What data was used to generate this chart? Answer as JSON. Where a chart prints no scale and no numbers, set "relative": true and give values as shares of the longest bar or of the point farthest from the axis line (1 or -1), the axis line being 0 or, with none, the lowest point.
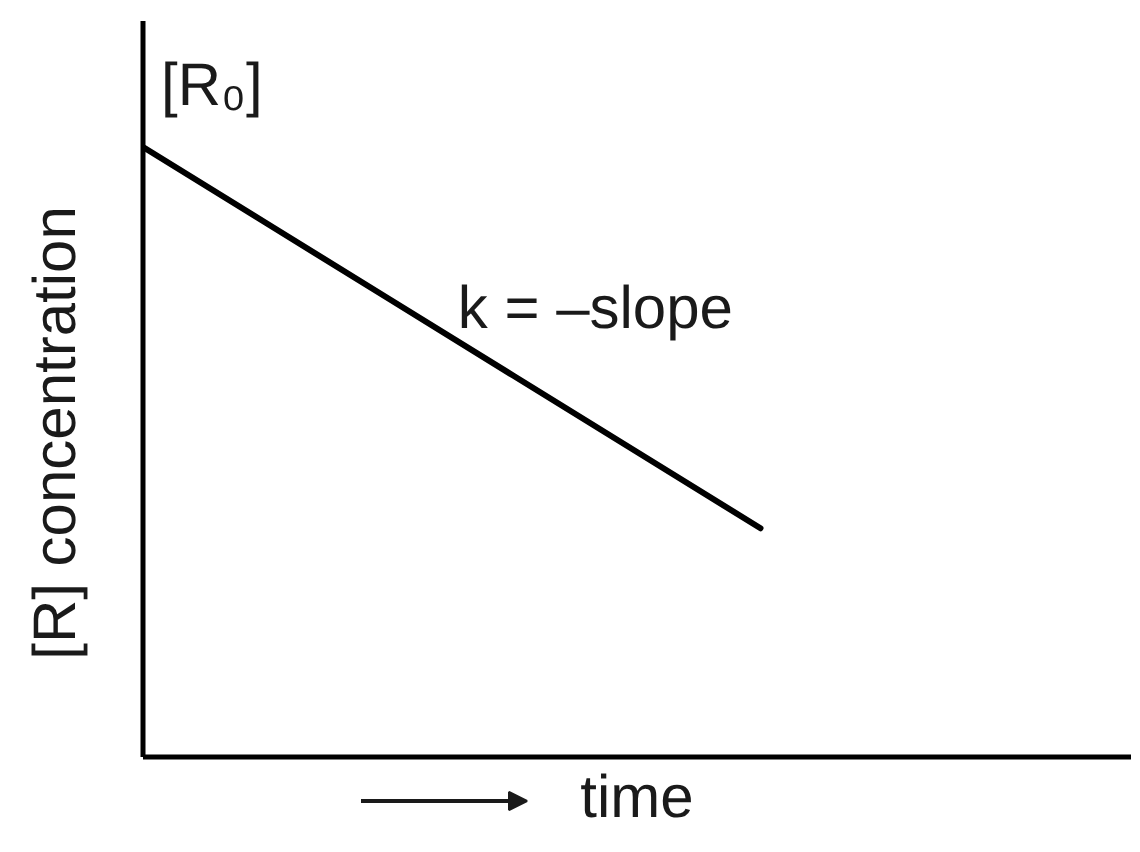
{
  "chart_data": {
    "type": "line",
    "relative": true,
    "xlabel": "time",
    "ylabel": "[R] concentration",
    "categories": [
      null,
      null,
      null,
      null,
      null,
      null,
      null,
      null,
      null
    ],
    "values": [
      1,
      0.875,
      0.75,
      0.625,
      0.5,
      0.375,
      null,
      null,
      null
    ],
    "color": "#000000",
    "line_style": "solid",
    "annotations": [
      "[R₀]",
      "k = –slope"
    ]
  }
}
